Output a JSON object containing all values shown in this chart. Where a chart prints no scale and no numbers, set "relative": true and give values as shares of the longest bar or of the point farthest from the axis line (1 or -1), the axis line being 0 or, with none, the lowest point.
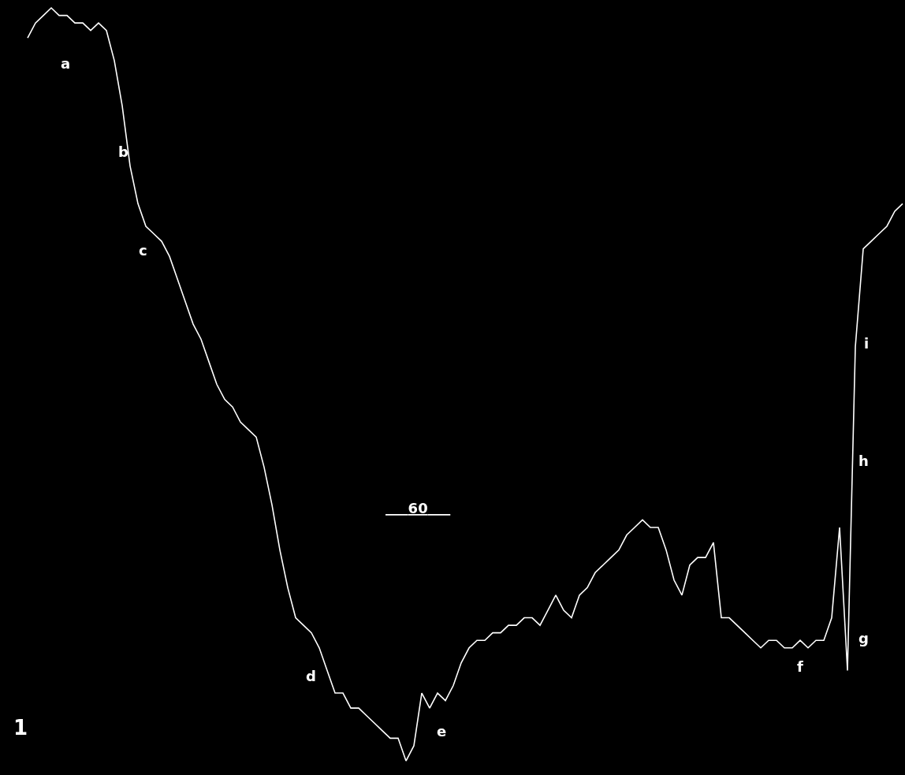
{
  "chart_data": {
    "type": "line",
    "relative": true,
    "tick_labels": false,
    "marker": "none",
    "line_style": "solid",
    "categories": [
      null,
      null,
      null,
      null,
      null,
      null,
      null,
      null,
      null,
      null,
      null,
      null,
      null,
      null,
      null,
      null,
      null,
      null,
      null,
      null,
      null,
      null,
      null,
      null,
      null,
      null,
      null,
      null,
      null,
      null,
      null,
      null,
      null,
      null,
      null,
      null,
      null,
      null,
      null,
      null,
      null,
      null,
      null,
      null,
      null,
      null,
      null,
      null,
      null,
      null,
      null,
      null,
      null,
      null,
      null,
      null,
      null,
      null,
      null,
      null,
      null,
      null,
      null,
      null,
      null,
      null,
      null,
      null,
      null,
      null,
      null,
      null,
      null,
      null,
      null,
      null,
      null,
      null,
      null,
      null,
      null,
      null,
      null,
      null,
      null,
      null,
      null,
      null,
      null,
      null,
      null,
      null,
      null,
      null,
      null,
      null,
      null,
      null,
      null,
      null,
      null,
      null,
      null,
      null,
      null,
      null,
      null,
      null,
      null,
      null,
      null,
      null
    ],
    "values": [
      0.96,
      0.98,
      0.99,
      1.0,
      0.99,
      0.99,
      0.98,
      0.98,
      0.97,
      0.98,
      0.97,
      0.93,
      0.87,
      0.79,
      0.74,
      0.71,
      0.7,
      0.69,
      0.67,
      0.64,
      0.61,
      0.58,
      0.56,
      0.53,
      0.5,
      0.48,
      0.47,
      0.45,
      0.44,
      0.43,
      0.39,
      0.34,
      0.28,
      0.23,
      0.19,
      0.18,
      0.17,
      0.15,
      0.12,
      0.09,
      0.09,
      0.07,
      0.07,
      0.06,
      0.05,
      0.04,
      0.03,
      0.03,
      0.0,
      0.02,
      0.09,
      0.07,
      0.09,
      0.08,
      0.1,
      0.13,
      0.15,
      0.16,
      0.16,
      0.17,
      0.17,
      0.18,
      0.18,
      0.19,
      0.19,
      0.18,
      0.2,
      0.22,
      0.2,
      0.19,
      0.22,
      0.23,
      0.25,
      0.26,
      0.27,
      0.28,
      0.3,
      0.31,
      0.32,
      0.31,
      0.31,
      0.28,
      0.24,
      0.22,
      0.26,
      0.27,
      0.27,
      0.29,
      0.19,
      0.19,
      0.18,
      0.17,
      0.16,
      0.15,
      0.16,
      0.16,
      0.15,
      0.15,
      0.16,
      0.15,
      0.16,
      0.16,
      0.19,
      0.31,
      0.12,
      0.55,
      0.68,
      0.69,
      0.7,
      0.71,
      0.73,
      0.74
    ],
    "color": "#ffffff",
    "annotations": [
      "a",
      "b",
      "c",
      "d",
      "e",
      "f",
      "g",
      "h",
      "i",
      "60",
      "1"
    ]
  }
}
